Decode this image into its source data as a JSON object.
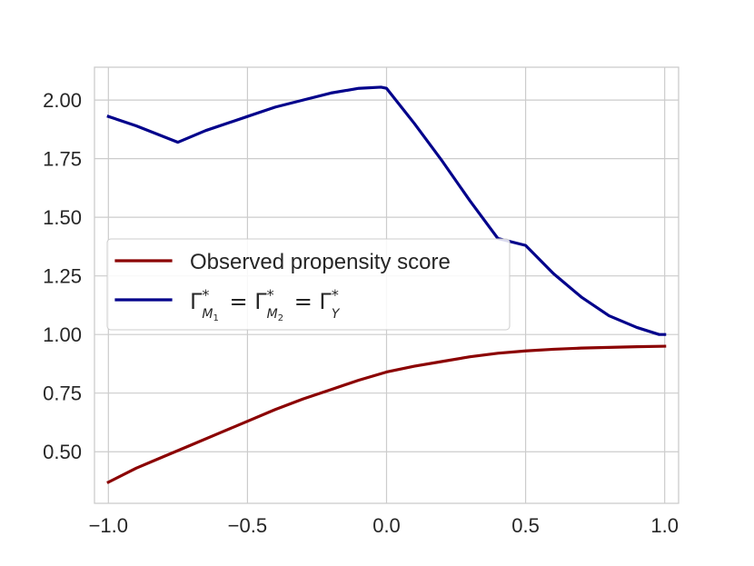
{
  "chart_data": {
    "type": "line",
    "title": "",
    "xlabel": "",
    "ylabel": "",
    "xlim": [
      -1.05,
      1.05
    ],
    "ylim": [
      0.28,
      2.14
    ],
    "x_ticks": [
      -1.0,
      -0.5,
      0.0,
      0.5,
      1.0
    ],
    "x_tick_labels": [
      "−1.0",
      "−0.5",
      "0.0",
      "0.5",
      "1.0"
    ],
    "y_ticks": [
      0.5,
      0.75,
      1.0,
      1.25,
      1.5,
      1.75,
      2.0
    ],
    "y_tick_labels": [
      "0.50",
      "0.75",
      "1.00",
      "1.25",
      "1.50",
      "1.75",
      "2.00"
    ],
    "grid": true,
    "legend_position": "center-left",
    "series": [
      {
        "name": "Observed propensity score",
        "color": "#8b0000",
        "x": [
          -1.0,
          -0.9,
          -0.8,
          -0.7,
          -0.6,
          -0.5,
          -0.4,
          -0.3,
          -0.2,
          -0.1,
          0.0,
          0.1,
          0.2,
          0.3,
          0.4,
          0.5,
          0.6,
          0.7,
          0.8,
          0.9,
          1.0
        ],
        "y": [
          0.37,
          0.43,
          0.48,
          0.53,
          0.58,
          0.63,
          0.68,
          0.725,
          0.765,
          0.805,
          0.84,
          0.865,
          0.885,
          0.905,
          0.92,
          0.93,
          0.937,
          0.942,
          0.945,
          0.948,
          0.95
        ]
      },
      {
        "name": "Γ*M₁ = Γ*M₂ = Γ*Y",
        "color": "#00008b",
        "x": [
          -1.0,
          -0.9,
          -0.75,
          -0.65,
          -0.5,
          -0.4,
          -0.3,
          -0.2,
          -0.1,
          -0.02,
          0.0,
          0.1,
          0.2,
          0.3,
          0.4,
          0.5,
          0.6,
          0.7,
          0.8,
          0.9,
          0.98,
          1.0
        ],
        "y": [
          1.93,
          1.89,
          1.82,
          1.87,
          1.93,
          1.97,
          2.0,
          2.03,
          2.05,
          2.055,
          2.05,
          1.9,
          1.74,
          1.57,
          1.41,
          1.38,
          1.26,
          1.16,
          1.08,
          1.03,
          1.0,
          1.0
        ]
      }
    ],
    "legend": [
      {
        "label": "Observed propensity score",
        "color": "#8b0000"
      },
      {
        "label": "Γ*M₁ = Γ*M₂ = Γ*Y",
        "color": "#00008b"
      }
    ]
  }
}
